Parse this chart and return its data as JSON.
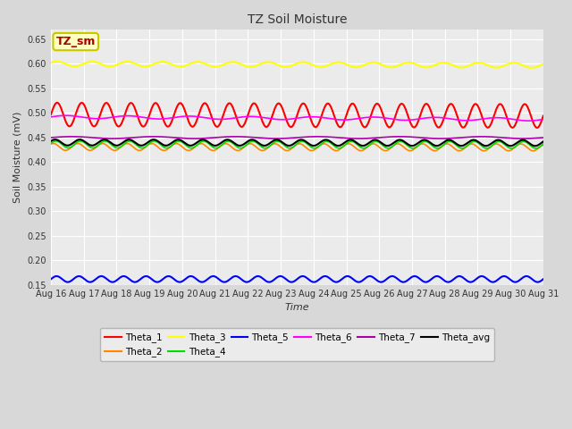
{
  "title": "TZ Soil Moisture",
  "xlabel": "Time",
  "ylabel": "Soil Moisture (mV)",
  "ylim": [
    0.15,
    0.67
  ],
  "yticks": [
    0.15,
    0.2,
    0.25,
    0.3,
    0.35,
    0.4,
    0.45,
    0.5,
    0.55,
    0.6,
    0.65
  ],
  "x_labels": [
    "Aug 16",
    "Aug 17",
    "Aug 18",
    "Aug 19",
    "Aug 20",
    "Aug 21",
    "Aug 22",
    "Aug 23",
    "Aug 24",
    "Aug 25",
    "Aug 26",
    "Aug 27",
    "Aug 28",
    "Aug 29",
    "Aug 30",
    "Aug 31"
  ],
  "n_points": 960,
  "series": [
    {
      "name": "Theta_1",
      "color": "#ff0000",
      "base": 0.497,
      "amp": 0.024,
      "cycles": 20,
      "phase": 0.0,
      "trend": -0.003,
      "lw": 1.5
    },
    {
      "name": "Theta_2",
      "color": "#ff8800",
      "base": 0.431,
      "amp": 0.007,
      "cycles": 20,
      "phase": 1.0,
      "trend": -0.001,
      "lw": 1.2
    },
    {
      "name": "Theta_3",
      "color": "#ffff00",
      "base": 0.6,
      "amp": 0.005,
      "cycles": 14,
      "phase": 0.5,
      "trend": -0.003,
      "lw": 1.5
    },
    {
      "name": "Theta_4",
      "color": "#00dd00",
      "base": 0.436,
      "amp": 0.007,
      "cycles": 20,
      "phase": 0.3,
      "trend": -0.001,
      "lw": 1.2
    },
    {
      "name": "Theta_5",
      "color": "#0000ff",
      "base": 0.162,
      "amp": 0.006,
      "cycles": 22,
      "phase": 0.0,
      "trend": 0.0,
      "lw": 1.5
    },
    {
      "name": "Theta_6",
      "color": "#ff00ff",
      "base": 0.492,
      "amp": 0.003,
      "cycles": 8,
      "phase": 0.0,
      "trend": -0.005,
      "lw": 1.2
    },
    {
      "name": "Theta_7",
      "color": "#aa00aa",
      "base": 0.45,
      "amp": 0.002,
      "cycles": 6,
      "phase": 0.0,
      "trend": 0.0,
      "lw": 1.2
    },
    {
      "name": "Theta_avg",
      "color": "#000000",
      "base": 0.44,
      "amp": 0.006,
      "cycles": 20,
      "phase": 0.5,
      "trend": -0.001,
      "lw": 1.5
    }
  ],
  "legend_label": "TZ_sm",
  "legend_facecolor": "#ffffc0",
  "legend_edgecolor": "#c8c800",
  "legend_text_color": "#aa0000",
  "bg_color": "#d8d8d8",
  "plot_bg_color": "#ebebeb",
  "grid_color": "#ffffff"
}
